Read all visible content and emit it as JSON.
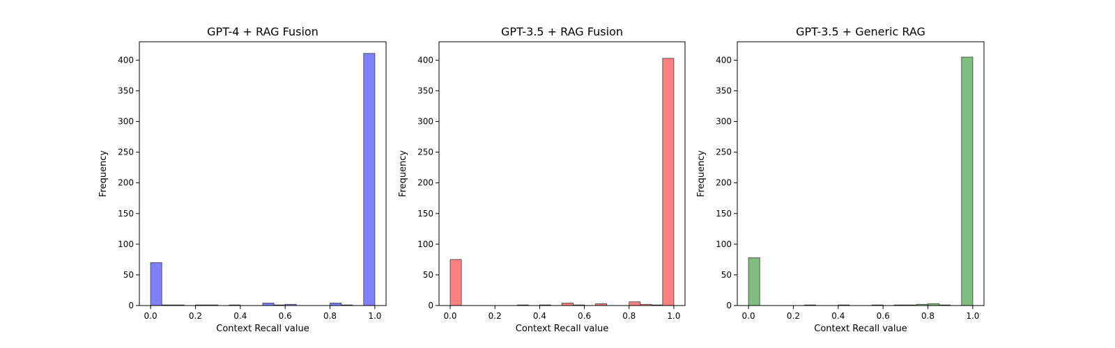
{
  "chart_data": [
    {
      "type": "bar",
      "title": "GPT-4 + RAG Fusion",
      "xlabel": "Context Recall value",
      "ylabel": "Frequency",
      "color": "#8080ff",
      "xlim": [
        -0.05,
        1.05
      ],
      "ylim": [
        0,
        430
      ],
      "xticks": [
        "0.0",
        "0.2",
        "0.4",
        "0.6",
        "0.8",
        "1.0"
      ],
      "yticks": [
        "0",
        "50",
        "100",
        "150",
        "200",
        "250",
        "300",
        "350",
        "400"
      ],
      "bin_width": 0.05,
      "bins": [
        {
          "x": 0.0,
          "value": 70
        },
        {
          "x": 0.05,
          "value": 1
        },
        {
          "x": 0.1,
          "value": 1
        },
        {
          "x": 0.2,
          "value": 1
        },
        {
          "x": 0.25,
          "value": 1
        },
        {
          "x": 0.35,
          "value": 1
        },
        {
          "x": 0.5,
          "value": 4
        },
        {
          "x": 0.55,
          "value": 1
        },
        {
          "x": 0.6,
          "value": 2
        },
        {
          "x": 0.8,
          "value": 4
        },
        {
          "x": 0.85,
          "value": 1
        },
        {
          "x": 0.95,
          "value": 411
        }
      ]
    },
    {
      "type": "bar",
      "title": "GPT-3.5 + RAG Fusion",
      "xlabel": "Context Recall value",
      "ylabel": "Frequency",
      "color": "#ff8080",
      "xlim": [
        -0.05,
        1.05
      ],
      "ylim": [
        0,
        430
      ],
      "xticks": [
        "0.0",
        "0.2",
        "0.4",
        "0.6",
        "0.8",
        "1.0"
      ],
      "yticks": [
        "0",
        "50",
        "100",
        "150",
        "200",
        "250",
        "300",
        "350",
        "400"
      ],
      "bin_width": 0.05,
      "bins": [
        {
          "x": 0.0,
          "value": 75
        },
        {
          "x": 0.3,
          "value": 1
        },
        {
          "x": 0.4,
          "value": 1
        },
        {
          "x": 0.5,
          "value": 4
        },
        {
          "x": 0.55,
          "value": 1
        },
        {
          "x": 0.65,
          "value": 3
        },
        {
          "x": 0.8,
          "value": 6
        },
        {
          "x": 0.85,
          "value": 2
        },
        {
          "x": 0.9,
          "value": 1
        },
        {
          "x": 0.95,
          "value": 403
        }
      ]
    },
    {
      "type": "bar",
      "title": "GPT-3.5 + Generic RAG",
      "xlabel": "Context Recall value",
      "ylabel": "Frequency",
      "color": "#80bf80",
      "xlim": [
        -0.05,
        1.05
      ],
      "ylim": [
        0,
        430
      ],
      "xticks": [
        "0.0",
        "0.2",
        "0.4",
        "0.6",
        "0.8",
        "1.0"
      ],
      "yticks": [
        "0",
        "50",
        "100",
        "150",
        "200",
        "250",
        "300",
        "350",
        "400"
      ],
      "bin_width": 0.05,
      "bins": [
        {
          "x": 0.0,
          "value": 78
        },
        {
          "x": 0.25,
          "value": 1
        },
        {
          "x": 0.4,
          "value": 1
        },
        {
          "x": 0.55,
          "value": 1
        },
        {
          "x": 0.65,
          "value": 1
        },
        {
          "x": 0.7,
          "value": 1
        },
        {
          "x": 0.75,
          "value": 2
        },
        {
          "x": 0.8,
          "value": 3
        },
        {
          "x": 0.85,
          "value": 1
        },
        {
          "x": 0.95,
          "value": 405
        }
      ]
    }
  ]
}
